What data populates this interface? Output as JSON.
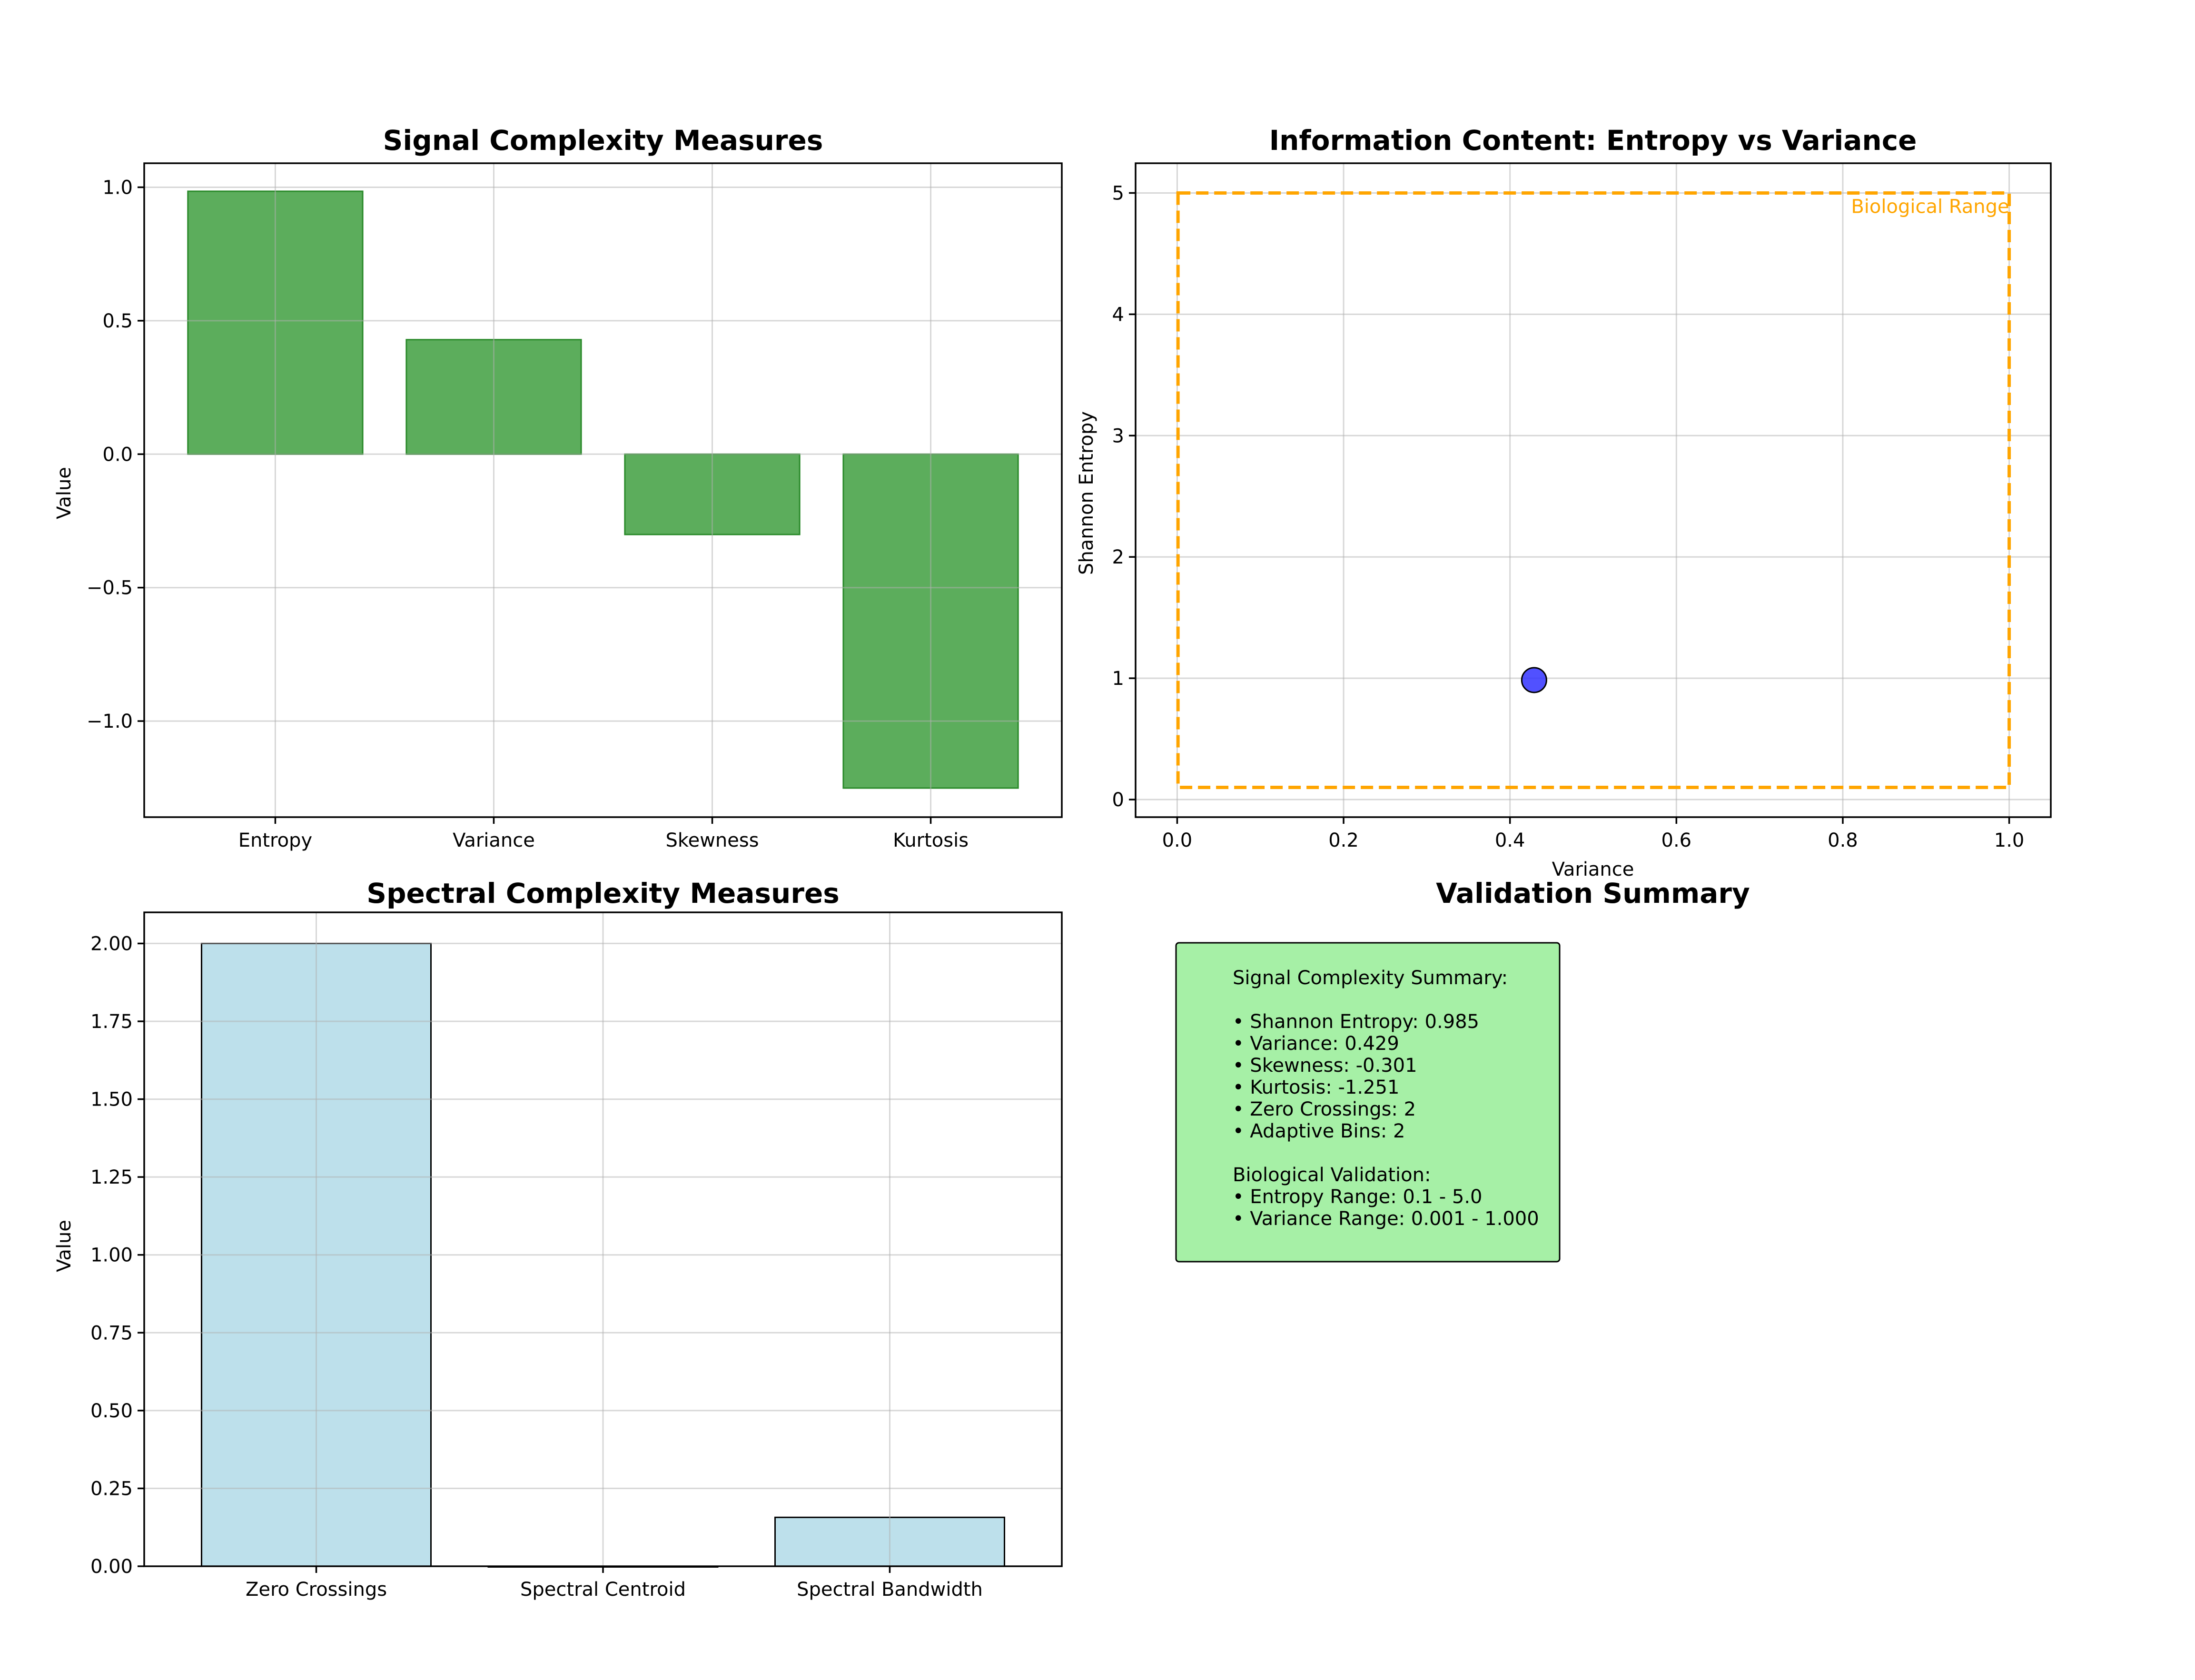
{
  "chart_data": [
    {
      "type": "bar",
      "title": "Signal Complexity Measures",
      "xlabel": "",
      "ylabel": "Value",
      "categories": [
        "Entropy",
        "Variance",
        "Skewness",
        "Kurtosis"
      ],
      "values": [
        0.985,
        0.429,
        -0.301,
        -1.251
      ],
      "ylim": [
        -1.36,
        1.09
      ],
      "yticks": [
        1.0,
        0.5,
        0.0,
        -0.5,
        -1.0
      ],
      "ytick_labels": [
        "1.0",
        "0.5",
        "0.0",
        "−0.5",
        "−1.0"
      ],
      "bar_color": "#339933",
      "grid": true
    },
    {
      "type": "scatter",
      "title": "Information Content: Entropy vs Variance",
      "xlabel": "Variance",
      "ylabel": "Shannon Entropy",
      "points": [
        {
          "x": 0.429,
          "y": 0.985
        }
      ],
      "point_color": "#3333ff",
      "xlim": [
        -0.05,
        1.05
      ],
      "ylim": [
        -0.145,
        5.245
      ],
      "xticks": [
        0.0,
        0.2,
        0.4,
        0.6,
        0.8,
        1.0
      ],
      "xtick_labels": [
        "0.0",
        "0.2",
        "0.4",
        "0.6",
        "0.8",
        "1.0"
      ],
      "yticks": [
        0,
        1,
        2,
        3,
        4,
        5
      ],
      "ytick_labels": [
        "0",
        "1",
        "2",
        "3",
        "4",
        "5"
      ],
      "range_box": {
        "label": "Biological Range",
        "x": [
          0.001,
          1.0
        ],
        "y": [
          0.1,
          5.0
        ],
        "color": "#ffa500"
      },
      "grid": true
    },
    {
      "type": "bar",
      "title": "Spectral Complexity Measures",
      "xlabel": "",
      "ylabel": "Value",
      "categories": [
        "Zero Crossings",
        "Spectral Centroid",
        "Spectral Bandwidth"
      ],
      "values": [
        2.0,
        0.0,
        0.157
      ],
      "ylim": [
        0.0,
        2.1
      ],
      "yticks": [
        0.0,
        0.25,
        0.5,
        0.75,
        1.0,
        1.25,
        1.5,
        1.75,
        2.0
      ],
      "ytick_labels": [
        "0.00",
        "0.25",
        "0.50",
        "0.75",
        "1.00",
        "1.25",
        "1.50",
        "1.75",
        "2.00"
      ],
      "bar_color": "#add8e6",
      "grid": true
    }
  ],
  "summary": {
    "title": "Validation Summary",
    "box_color": "#90ee90",
    "lines": [
      "Signal Complexity Summary:",
      "",
      "• Shannon Entropy: 0.985",
      "• Variance: 0.429",
      "• Skewness: -0.301",
      "• Kurtosis: -1.251",
      "• Zero Crossings: 2",
      "• Adaptive Bins: 2",
      "",
      "Biological Validation:",
      "• Entropy Range: 0.1 - 5.0",
      "• Variance Range: 0.001 - 1.000"
    ]
  }
}
